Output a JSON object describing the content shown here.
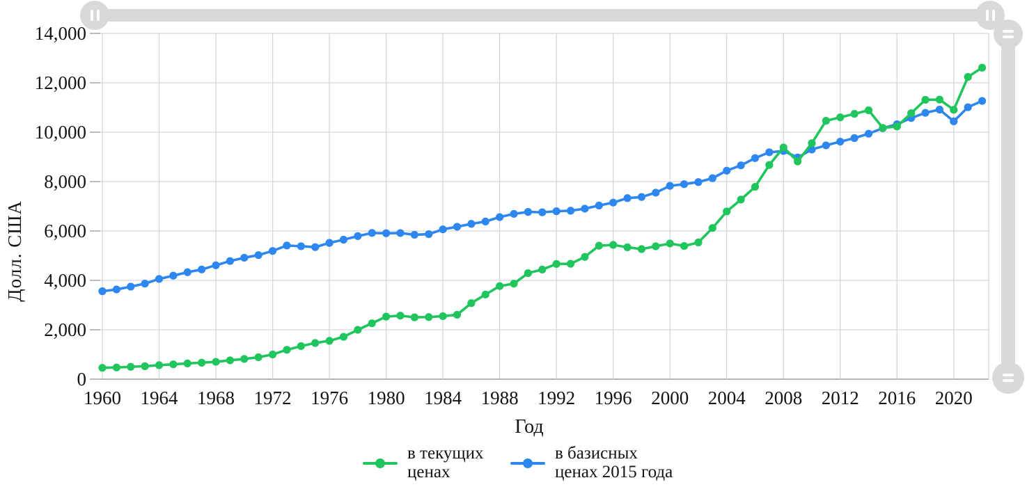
{
  "chart_data": {
    "type": "line",
    "title": "",
    "xlabel": "Год",
    "ylabel": "Долл. США",
    "x_range": [
      1960,
      2022
    ],
    "x_step": 1,
    "x_tick_years": [
      1960,
      1964,
      1968,
      1972,
      1976,
      1980,
      1984,
      1988,
      1992,
      1996,
      2000,
      2004,
      2008,
      2012,
      2016,
      2020
    ],
    "ylim": [
      0,
      14000
    ],
    "y_ticks": [
      0,
      2000,
      4000,
      6000,
      8000,
      10000,
      12000,
      14000
    ],
    "grid": true,
    "legend_position": "bottom",
    "series": [
      {
        "name": "в текущих ценах",
        "color": "#21c55d",
        "values": [
          459,
          473,
          500,
          525,
          566,
          601,
          637,
          666,
          703,
          763,
          818,
          888,
          1000,
          1188,
          1339,
          1464,
          1552,
          1715,
          1998,
          2263,
          2532,
          2572,
          2504,
          2514,
          2551,
          2607,
          3079,
          3427,
          3770,
          3867,
          4293,
          4439,
          4665,
          4672,
          4950,
          5404,
          5437,
          5340,
          5267,
          5380,
          5494,
          5392,
          5535,
          6121,
          6790,
          7271,
          7787,
          8672,
          9382,
          8816,
          9554,
          10461,
          10602,
          10742,
          10887,
          10175,
          10230,
          10769,
          11311,
          11320,
          10906,
          12236,
          12613
        ]
      },
      {
        "name": "в базисных ценах 2015 года",
        "color": "#2e87ee",
        "values": [
          3560,
          3632,
          3746,
          3869,
          4058,
          4190,
          4330,
          4442,
          4611,
          4784,
          4917,
          5023,
          5192,
          5412,
          5382,
          5346,
          5517,
          5648,
          5792,
          5919,
          5908,
          5917,
          5847,
          5871,
          6065,
          6171,
          6288,
          6383,
          6562,
          6692,
          6771,
          6757,
          6799,
          6821,
          6903,
          7031,
          7150,
          7330,
          7376,
          7551,
          7827,
          7896,
          7979,
          8137,
          8441,
          8656,
          8951,
          9187,
          9238,
          8977,
          9298,
          9467,
          9617,
          9760,
          9938,
          10162,
          10321,
          10573,
          10784,
          10916,
          10439,
          11011,
          11265
        ]
      }
    ]
  },
  "icons": {
    "h_scroll_grip": "‖",
    "v_scroll_grip": "="
  },
  "colors": {
    "series_current": "#21c55d",
    "series_constant": "#2e87ee",
    "gridline": "#d6d6d6",
    "axis_line": "#9e9e9e",
    "scrollbar": "#d9d9d9",
    "text": "#141414"
  }
}
